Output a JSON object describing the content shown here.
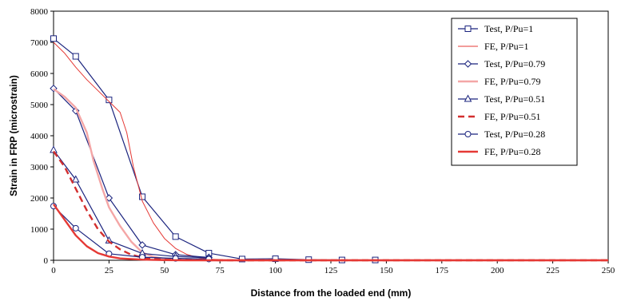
{
  "chart_data": {
    "type": "line",
    "title": "",
    "xlabel": "Distance from the loaded end (mm)",
    "ylabel": "Strain in FRP (microstrain)",
    "xlim": [
      0,
      250
    ],
    "ylim": [
      0,
      8000
    ],
    "xticks": [
      0,
      25,
      50,
      75,
      100,
      125,
      150,
      175,
      200,
      225,
      250
    ],
    "yticks": [
      0,
      1000,
      2000,
      3000,
      4000,
      5000,
      6000,
      7000,
      8000
    ],
    "grid": false,
    "legend_position": "top-right",
    "series": [
      {
        "name": "Test, P/Pu=1",
        "color": "#1a237e",
        "marker": "square",
        "line": "solid",
        "x": [
          0,
          10,
          25,
          40,
          55,
          70,
          85,
          100,
          115,
          130,
          145
        ],
        "y": [
          7120,
          6550,
          5150,
          2040,
          760,
          230,
          40,
          50,
          20,
          10,
          10
        ]
      },
      {
        "name": "FE, P/Pu=1",
        "color": "#e53935",
        "marker": "none",
        "line": "solid-thin",
        "x": [
          0,
          5,
          10,
          15,
          20,
          25,
          30,
          33,
          36,
          40,
          45,
          50,
          55,
          60,
          65,
          70,
          80,
          100,
          150,
          200,
          250
        ],
        "y": [
          7000,
          6650,
          6200,
          5800,
          5450,
          5100,
          4750,
          4100,
          3000,
          1900,
          1200,
          700,
          380,
          190,
          90,
          40,
          10,
          0,
          0,
          0,
          0
        ]
      },
      {
        "name": "Test, P/Pu=0.79",
        "color": "#1a237e",
        "marker": "diamond",
        "line": "solid",
        "x": [
          0,
          10,
          25,
          40,
          55,
          70
        ],
        "y": [
          5520,
          4800,
          2000,
          490,
          180,
          90
        ]
      },
      {
        "name": "FE, P/Pu=0.79",
        "color": "#f4a6a6",
        "marker": "none",
        "line": "solid-thick",
        "x": [
          0,
          5,
          10,
          15,
          18,
          22,
          25,
          30,
          35,
          40,
          45,
          50,
          60,
          70,
          100,
          150,
          200,
          250
        ],
        "y": [
          5500,
          5250,
          4900,
          4100,
          3200,
          2300,
          1700,
          1100,
          600,
          250,
          110,
          50,
          10,
          0,
          0,
          0,
          0,
          0
        ]
      },
      {
        "name": "Test, P/Pu=0.51",
        "color": "#1a237e",
        "marker": "triangle",
        "line": "solid",
        "x": [
          0,
          10,
          25,
          40,
          55,
          70
        ],
        "y": [
          3540,
          2590,
          630,
          220,
          120,
          80
        ]
      },
      {
        "name": "FE, P/Pu=0.51",
        "color": "#d32f2f",
        "marker": "none",
        "line": "dashed",
        "x": [
          0,
          5,
          10,
          15,
          20,
          25,
          30,
          35,
          40,
          45,
          50,
          60,
          80,
          100,
          150,
          200,
          250
        ],
        "y": [
          3500,
          3000,
          2300,
          1600,
          1000,
          600,
          350,
          180,
          90,
          40,
          20,
          10,
          0,
          0,
          0,
          0,
          0
        ]
      },
      {
        "name": "Test, P/Pu=0.28",
        "color": "#1a237e",
        "marker": "circle",
        "line": "solid",
        "x": [
          0,
          10,
          25,
          40,
          55,
          70
        ],
        "y": [
          1740,
          1030,
          210,
          100,
          60,
          40
        ]
      },
      {
        "name": "FE, P/Pu=0.28",
        "color": "#e53935",
        "marker": "none",
        "line": "solid-thick",
        "x": [
          0,
          5,
          10,
          15,
          20,
          25,
          30,
          40,
          50,
          60,
          80,
          100,
          150,
          200,
          250
        ],
        "y": [
          1800,
          1300,
          800,
          450,
          230,
          120,
          60,
          20,
          5,
          0,
          0,
          0,
          0,
          0,
          0
        ]
      }
    ]
  }
}
